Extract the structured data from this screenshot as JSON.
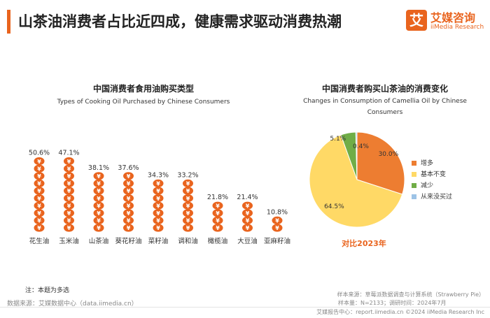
{
  "header": {
    "title": "山茶油消费者占比近四成，健康需求驱动消费热潮"
  },
  "logo": {
    "mark": "艾",
    "cn": "艾媒咨询",
    "en": "iiMedia Research"
  },
  "colors": {
    "accent": "#e9641e",
    "increase": "#ed7d31",
    "unchanged": "#ffd966",
    "decrease": "#70ad47",
    "never": "#9dc3e6"
  },
  "chart_data": [
    {
      "type": "bar",
      "title": "中国消费者食用油购买类型",
      "subtitle": "Types of Cooking Oil Purchased by Chinese Consumers",
      "icon": "coin-stack-icon",
      "categories": [
        "花生油",
        "玉米油",
        "山茶油",
        "葵花籽油",
        "菜籽油",
        "调和油",
        "橄榄油",
        "大豆油",
        "亚麻籽油"
      ],
      "values": [
        50.6,
        47.1,
        38.1,
        37.6,
        34.3,
        33.2,
        21.8,
        21.4,
        10.8
      ],
      "labels": [
        "50.6%",
        "47.1%",
        "38.1%",
        "37.6%",
        "34.3%",
        "33.2%",
        "21.8%",
        "21.4%",
        "10.8%"
      ],
      "ylim": [
        0,
        60
      ]
    },
    {
      "type": "pie",
      "title": "中国消费者购买山茶油的消费变化",
      "subtitle": "Changes in Consumption of Camellia Oil by Chinese Consumers",
      "categories": [
        "增多",
        "基本不变",
        "减少",
        "从来没买过"
      ],
      "values": [
        30.0,
        64.5,
        5.1,
        0.4
      ],
      "labels": [
        "30.0%",
        "64.5%",
        "5.1%",
        "0.4%"
      ],
      "note": "对比2023年"
    }
  ],
  "footnote": {
    "note": "注：本题为多选",
    "source": "数据来源：艾媒数据中心（data.iimedia.cn）"
  },
  "sample": {
    "line1": "样本来源：草莓派数据调查与计算系统（Strawberry Pie）",
    "line2": "样本量：N=2133；调研时间：2024年7月"
  },
  "footer": {
    "text": "艾媒报告中心：report.iimedia.cn  ©2024  iiMedia Research  Inc"
  }
}
